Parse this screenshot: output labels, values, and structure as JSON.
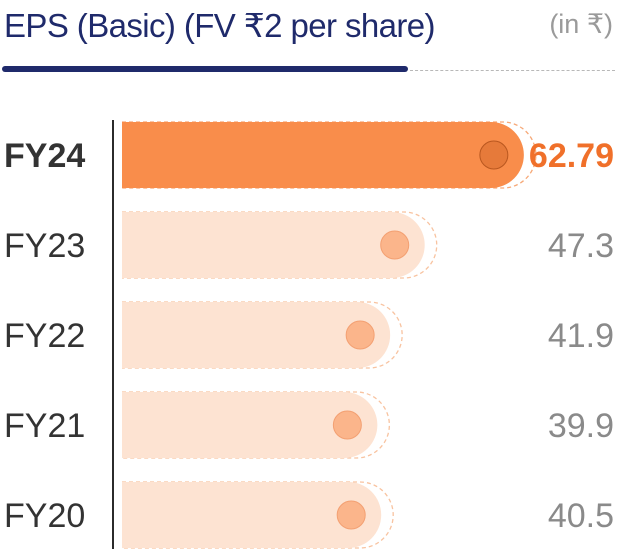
{
  "header": {
    "title": "EPS (Basic) (FV ₹2 per share)",
    "unit": "(in ₹)"
  },
  "colors": {
    "title": "#1f2a6b",
    "highlight_bar": "#f98d4b",
    "highlight_text": "#f0702a",
    "bar": "#fde3d2",
    "knob_highlight": "#e67a3a",
    "knob": "#fbb58b",
    "value_text": "#8a8a8a"
  },
  "chart_data": {
    "type": "bar",
    "orientation": "horizontal",
    "categories": [
      "FY24",
      "FY23",
      "FY22",
      "FY21",
      "FY20"
    ],
    "values": [
      62.79,
      47.3,
      41.9,
      39.9,
      40.5
    ],
    "value_labels": [
      "62.79",
      "47.3",
      "41.9",
      "39.9",
      "40.5"
    ],
    "highlight": "FY24",
    "xlim": [
      0,
      70
    ],
    "grid": false,
    "legend": "none"
  }
}
